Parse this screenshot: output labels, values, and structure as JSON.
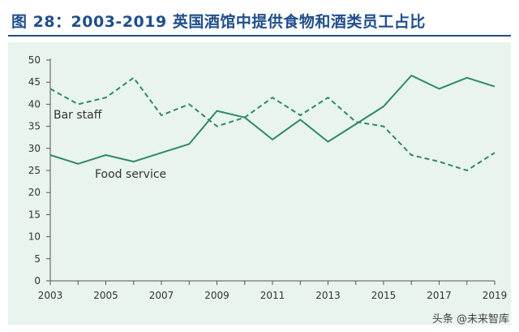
{
  "figure": {
    "title": "图 28：2003-2019 英国酒馆中提供食物和酒类员工占比"
  },
  "watermark": {
    "text": "头条 @未来智库"
  },
  "chart_data": {
    "type": "line",
    "title": "",
    "xlabel": "",
    "ylabel": "",
    "x": [
      2003,
      2004,
      2005,
      2006,
      2007,
      2008,
      2009,
      2010,
      2011,
      2012,
      2013,
      2014,
      2015,
      2016,
      2017,
      2018,
      2019
    ],
    "xticks": [
      "2003",
      "2005",
      "2007",
      "2009",
      "2011",
      "2013",
      "2015",
      "2017",
      "2019"
    ],
    "ylim": [
      0,
      50
    ],
    "yticks": [
      "0",
      "5",
      "10",
      "15",
      "20",
      "25",
      "30",
      "35",
      "40",
      "45",
      "50"
    ],
    "grid": false,
    "legend": "inline labels",
    "color": "#2e8b5f",
    "series": [
      {
        "name": "Bar staff",
        "style": "dashed",
        "values": [
          43.5,
          40,
          41.5,
          46,
          37.5,
          40,
          35,
          37,
          41.5,
          37.5,
          41.5,
          36,
          35,
          28.5,
          27,
          25,
          29
        ]
      },
      {
        "name": "Food service",
        "style": "solid",
        "values": [
          28.5,
          26.5,
          28.5,
          27,
          29,
          31,
          38.5,
          37,
          32,
          36.5,
          31.5,
          35.5,
          39.5,
          46.5,
          43.5,
          46,
          44
        ]
      }
    ]
  }
}
